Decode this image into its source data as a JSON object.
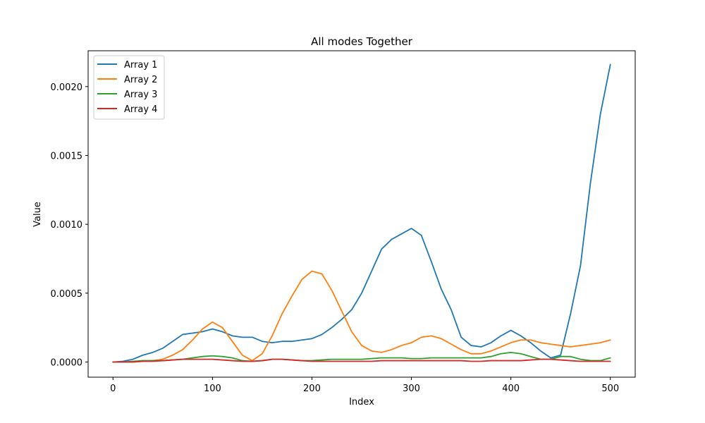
{
  "chart_data": {
    "type": "line",
    "title": "All modes Together",
    "xlabel": "Index",
    "ylabel": "Value",
    "xlim": [
      -25,
      525
    ],
    "ylim": [
      -0.00011,
      0.00226
    ],
    "xticks": [
      0,
      100,
      200,
      300,
      400,
      500
    ],
    "xtick_labels": [
      "0",
      "100",
      "200",
      "300",
      "400",
      "500"
    ],
    "yticks": [
      0,
      0.0005,
      0.001,
      0.0015,
      0.002
    ],
    "ytick_labels": [
      "0.0000",
      "0.0005",
      "0.0010",
      "0.0015",
      "0.0020"
    ],
    "grid": false,
    "legend_position": "top-left",
    "series": [
      {
        "name": "Array 1",
        "color": "#1f77b4",
        "x": [
          0,
          10,
          20,
          30,
          40,
          50,
          60,
          70,
          80,
          90,
          100,
          110,
          120,
          130,
          140,
          150,
          160,
          170,
          180,
          190,
          200,
          210,
          220,
          230,
          240,
          250,
          260,
          270,
          280,
          290,
          300,
          310,
          320,
          330,
          340,
          350,
          360,
          370,
          380,
          390,
          400,
          410,
          420,
          430,
          440,
          450,
          460,
          470,
          480,
          490,
          500
        ],
        "y": [
          0,
          5e-06,
          2e-05,
          5e-05,
          7e-05,
          0.0001,
          0.00015,
          0.0002,
          0.00021,
          0.00022,
          0.00024,
          0.00022,
          0.00019,
          0.00018,
          0.00018,
          0.00015,
          0.00014,
          0.00015,
          0.00015,
          0.00016,
          0.00017,
          0.0002,
          0.00025,
          0.00031,
          0.00038,
          0.0005,
          0.00066,
          0.00082,
          0.00089,
          0.00093,
          0.00097,
          0.00092,
          0.00073,
          0.00053,
          0.00038,
          0.00018,
          0.00012,
          0.00011,
          0.00014,
          0.00019,
          0.00023,
          0.00019,
          0.00014,
          8e-05,
          3e-05,
          5e-05,
          0.00035,
          0.0007,
          0.0013,
          0.0018,
          0.00216
        ]
      },
      {
        "name": "Array 2",
        "color": "#ff7f0e",
        "x": [
          0,
          10,
          20,
          30,
          40,
          50,
          60,
          70,
          80,
          90,
          100,
          110,
          120,
          130,
          140,
          150,
          160,
          170,
          180,
          190,
          200,
          210,
          220,
          230,
          240,
          250,
          260,
          270,
          280,
          290,
          300,
          310,
          320,
          330,
          340,
          350,
          360,
          370,
          380,
          390,
          400,
          410,
          420,
          430,
          440,
          450,
          460,
          470,
          480,
          490,
          500
        ],
        "y": [
          0,
          0,
          0,
          5e-06,
          1e-05,
          2e-05,
          5e-05,
          9e-05,
          0.00016,
          0.00024,
          0.00029,
          0.00025,
          0.00015,
          5e-05,
          1e-05,
          6e-05,
          0.00019,
          0.00035,
          0.00048,
          0.0006,
          0.00066,
          0.00064,
          0.00052,
          0.00037,
          0.00022,
          0.00012,
          8e-05,
          7e-05,
          9e-05,
          0.00012,
          0.00014,
          0.00018,
          0.00019,
          0.00017,
          0.00013,
          9e-05,
          6e-05,
          6e-05,
          8e-05,
          0.00011,
          0.00014,
          0.00016,
          0.00016,
          0.00014,
          0.00013,
          0.00012,
          0.00011,
          0.00012,
          0.00013,
          0.00014,
          0.00016
        ]
      },
      {
        "name": "Array 3",
        "color": "#2ca02c",
        "x": [
          0,
          10,
          20,
          30,
          40,
          50,
          60,
          70,
          80,
          90,
          100,
          110,
          120,
          130,
          140,
          150,
          160,
          170,
          180,
          190,
          200,
          210,
          220,
          230,
          240,
          250,
          260,
          270,
          280,
          290,
          300,
          310,
          320,
          330,
          340,
          350,
          360,
          370,
          380,
          390,
          400,
          410,
          420,
          430,
          440,
          450,
          460,
          470,
          480,
          490,
          500
        ],
        "y": [
          0,
          0,
          5e-06,
          1e-05,
          1e-05,
          1e-05,
          1.5e-05,
          2e-05,
          3e-05,
          4e-05,
          4.5e-05,
          4e-05,
          3e-05,
          1e-05,
          5e-06,
          1e-05,
          2e-05,
          2e-05,
          1.5e-05,
          1e-05,
          1e-05,
          1.5e-05,
          2e-05,
          2e-05,
          2e-05,
          2e-05,
          2.5e-05,
          3e-05,
          3e-05,
          3e-05,
          2.5e-05,
          2.5e-05,
          3e-05,
          3e-05,
          3e-05,
          3e-05,
          3e-05,
          3e-05,
          4e-05,
          6e-05,
          7e-05,
          6e-05,
          4e-05,
          2e-05,
          2e-05,
          4e-05,
          4e-05,
          2e-05,
          1e-05,
          1e-05,
          3e-05
        ]
      },
      {
        "name": "Array 4",
        "color": "#d62728",
        "x": [
          0,
          10,
          20,
          30,
          40,
          50,
          60,
          70,
          80,
          90,
          100,
          110,
          120,
          130,
          140,
          150,
          160,
          170,
          180,
          190,
          200,
          210,
          220,
          230,
          240,
          250,
          260,
          270,
          280,
          290,
          300,
          310,
          320,
          330,
          340,
          350,
          360,
          370,
          380,
          390,
          400,
          410,
          420,
          430,
          440,
          450,
          460,
          470,
          480,
          490,
          500
        ],
        "y": [
          0,
          0,
          0,
          5e-06,
          5e-06,
          1e-05,
          1.5e-05,
          2e-05,
          2e-05,
          2e-05,
          2e-05,
          1.5e-05,
          1e-05,
          5e-06,
          5e-06,
          1e-05,
          2e-05,
          2e-05,
          1.5e-05,
          1e-05,
          5e-06,
          5e-06,
          5e-06,
          5e-06,
          5e-06,
          5e-06,
          5e-06,
          1e-05,
          1e-05,
          1e-05,
          1e-05,
          1e-05,
          1e-05,
          1e-05,
          1e-05,
          1e-05,
          5e-06,
          5e-06,
          1e-05,
          1e-05,
          1e-05,
          1e-05,
          1.5e-05,
          2e-05,
          2e-05,
          1.5e-05,
          1e-05,
          5e-06,
          5e-06,
          5e-06,
          5e-06
        ]
      }
    ]
  }
}
